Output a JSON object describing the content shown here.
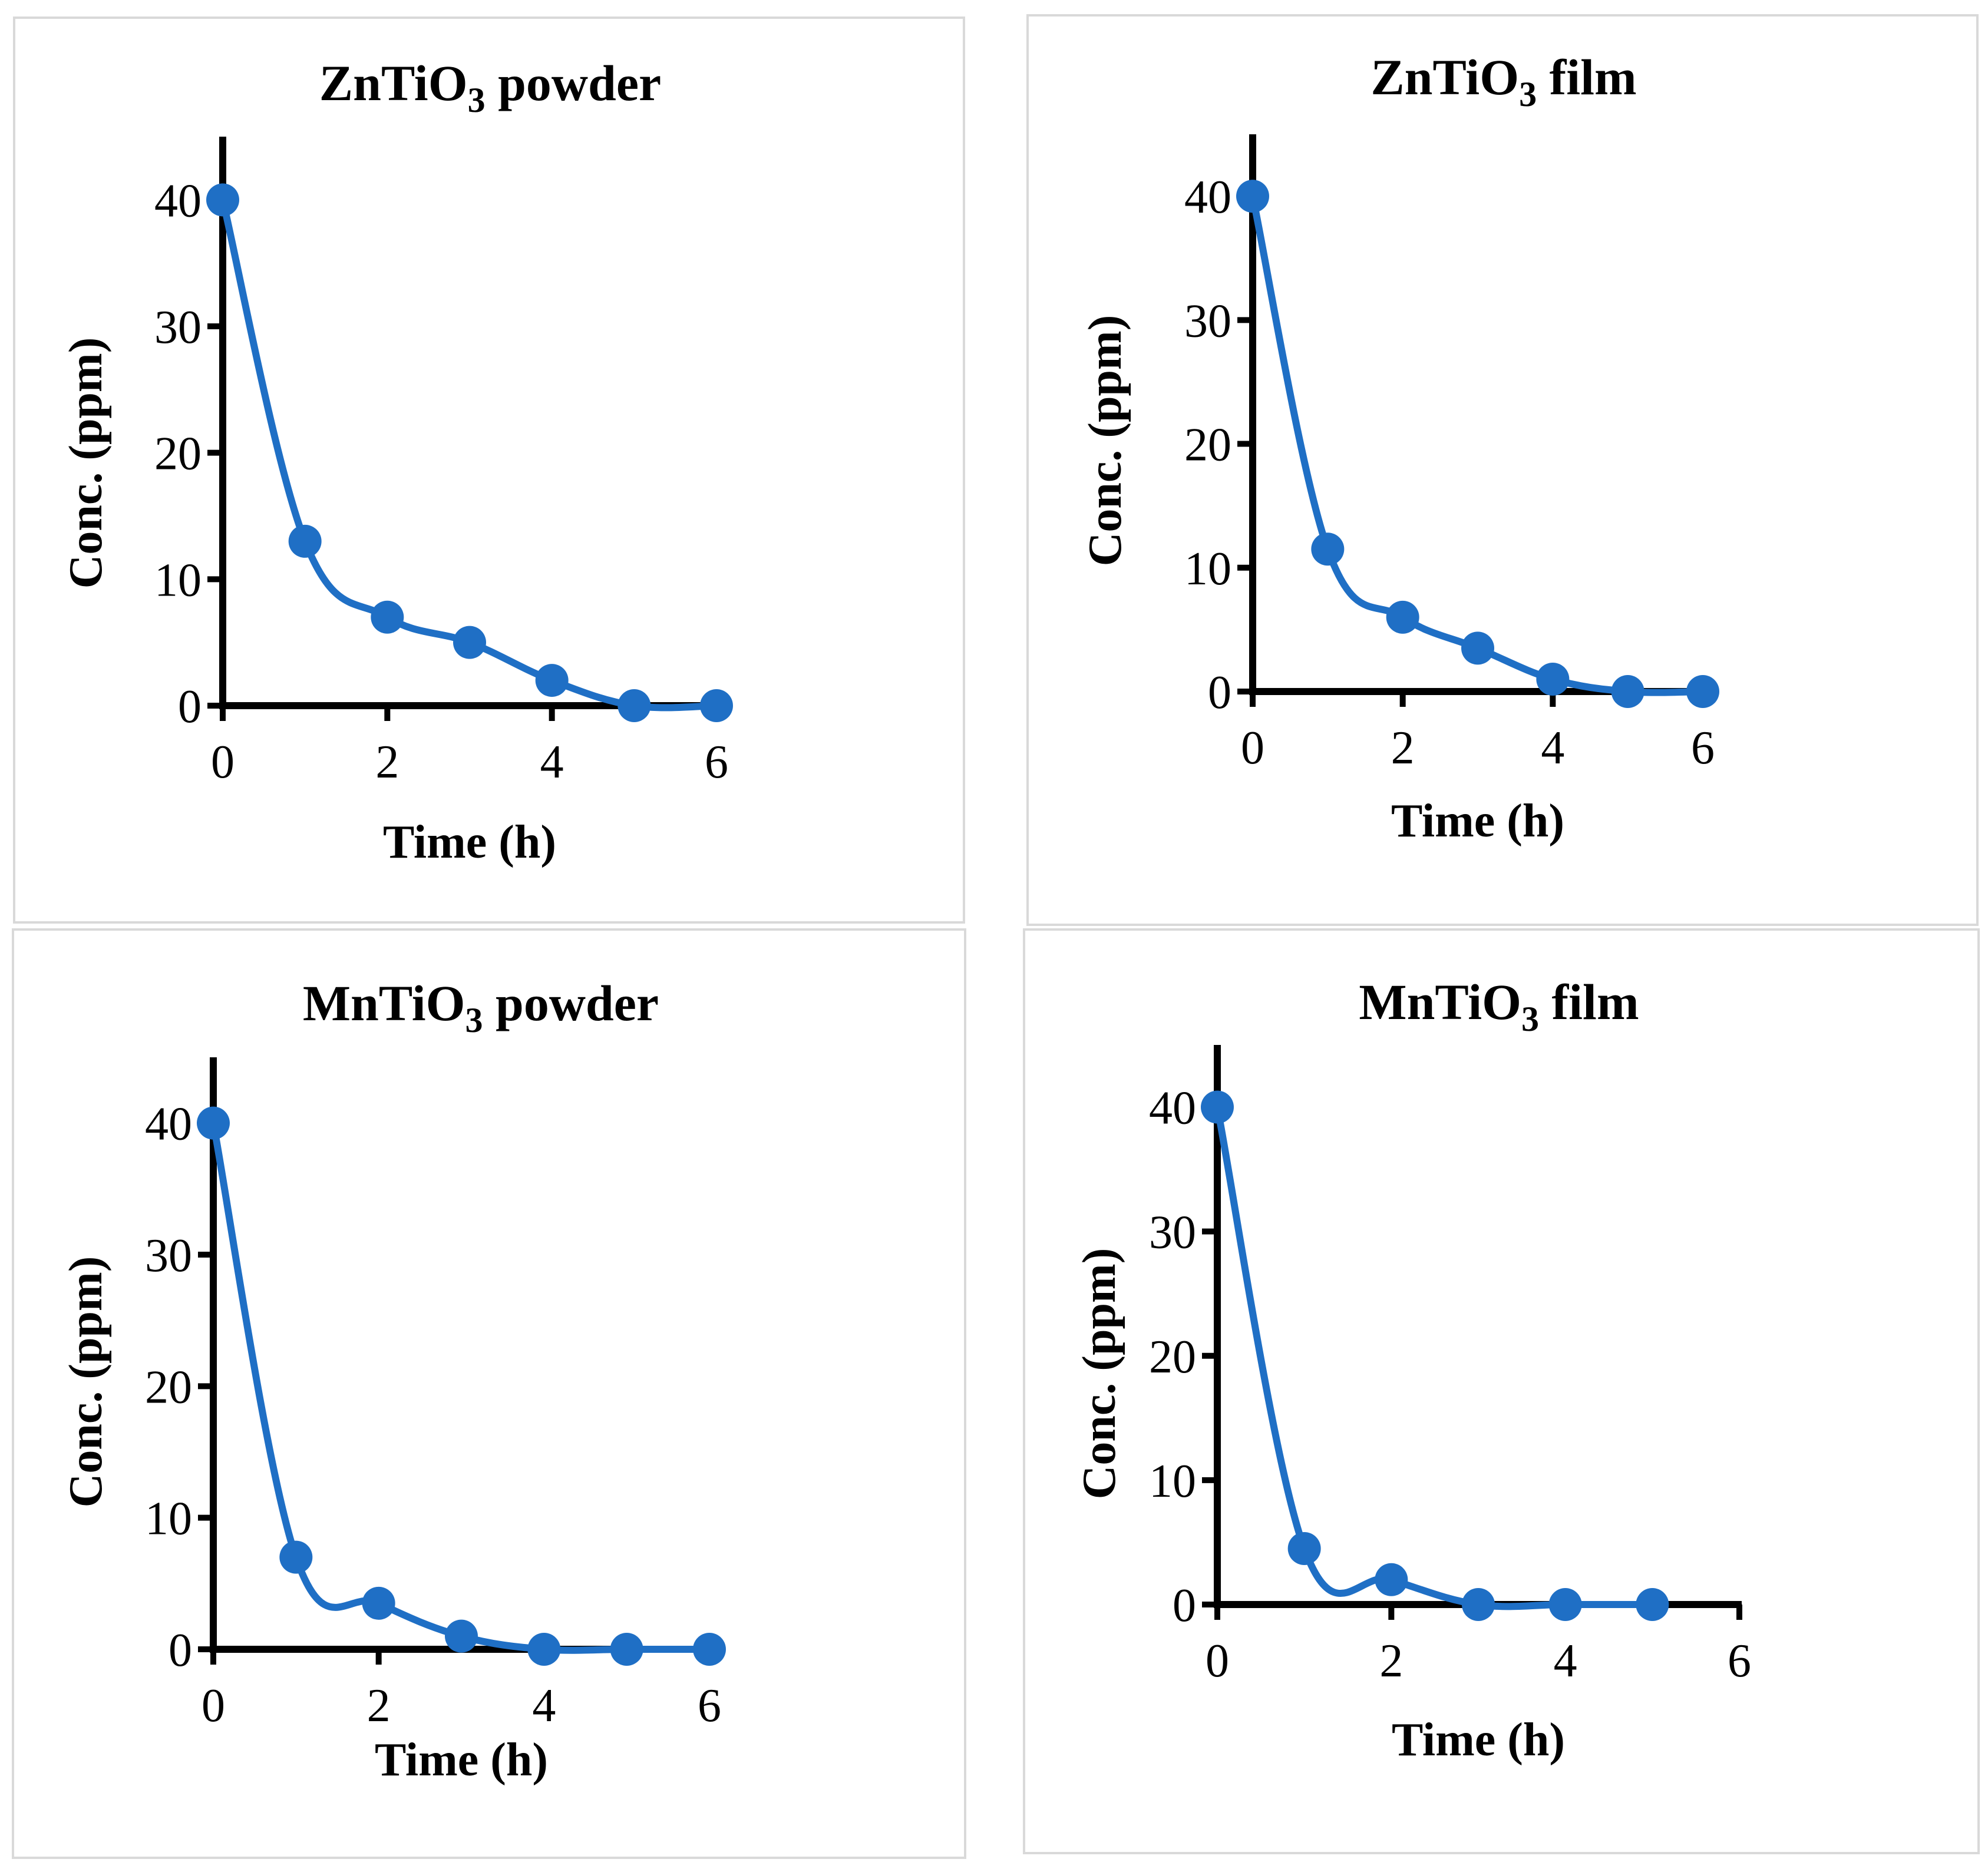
{
  "chart_data": [
    {
      "type": "line",
      "title": "ZnTiO",
      "title_subscript": "3",
      "title_suffix": " powder",
      "xlabel": "Time (h)",
      "ylabel": "Conc. (ppm)",
      "xlim": [
        0,
        6
      ],
      "ylim": [
        0,
        45
      ],
      "xticks": [
        0,
        2,
        4,
        6
      ],
      "yticks": [
        0,
        10,
        20,
        30,
        40
      ],
      "smooth": true,
      "grid": false,
      "series": [
        {
          "name": "ZnTiO3 powder",
          "color": "#1f6fc5",
          "x": [
            0,
            1,
            2,
            3,
            4,
            5,
            6
          ],
          "y": [
            40,
            13,
            7,
            5,
            2,
            0,
            0
          ]
        }
      ]
    },
    {
      "type": "line",
      "title": "ZnTiO",
      "title_subscript": "3",
      "title_suffix": " film",
      "xlabel": "Time (h)",
      "ylabel": "Conc. (ppm)",
      "xlim": [
        0,
        6
      ],
      "ylim": [
        0,
        45
      ],
      "xticks": [
        0,
        2,
        4,
        6
      ],
      "yticks": [
        0,
        10,
        20,
        30,
        40
      ],
      "smooth": true,
      "grid": false,
      "series": [
        {
          "name": "ZnTiO3 film",
          "color": "#1f6fc5",
          "x": [
            0,
            1,
            2,
            3,
            4,
            5,
            6
          ],
          "y": [
            40,
            11.5,
            6,
            3.5,
            1,
            0,
            0
          ]
        }
      ]
    },
    {
      "type": "line",
      "title": "MnTiO",
      "title_subscript": "3",
      "title_suffix": " powder",
      "xlabel": "Time (h)",
      "ylabel": "Conc. (ppm)",
      "xlim": [
        0,
        6
      ],
      "ylim": [
        0,
        45
      ],
      "xticks": [
        0,
        2,
        4,
        6
      ],
      "yticks": [
        0,
        10,
        20,
        30,
        40
      ],
      "smooth": true,
      "grid": false,
      "series": [
        {
          "name": "MnTiO3 powder",
          "color": "#1f6fc5",
          "x": [
            0,
            1,
            2,
            3,
            4,
            5,
            6
          ],
          "y": [
            40,
            7,
            3.5,
            1,
            0,
            0,
            0
          ]
        }
      ]
    },
    {
      "type": "line",
      "title": "MnTiO",
      "title_subscript": "3",
      "title_suffix": "  film",
      "xlabel": "Time (h)",
      "ylabel": "Conc. (ppm)",
      "xlim": [
        0,
        6
      ],
      "ylim": [
        0,
        45
      ],
      "xticks": [
        0,
        2,
        4,
        6
      ],
      "yticks": [
        0,
        10,
        20,
        30,
        40
      ],
      "smooth": true,
      "grid": false,
      "series": [
        {
          "name": "MnTiO3 film",
          "color": "#1f6fc5",
          "x": [
            0,
            1,
            2,
            3,
            4,
            5
          ],
          "y": [
            40,
            4.5,
            2,
            0,
            0,
            0
          ]
        }
      ]
    }
  ]
}
